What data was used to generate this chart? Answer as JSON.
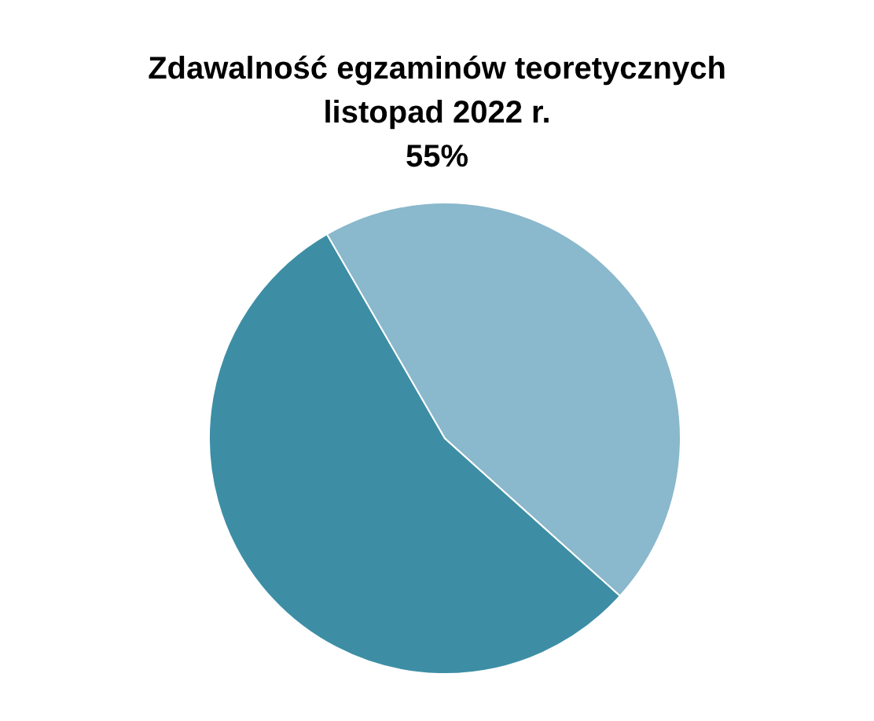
{
  "chart_data": {
    "type": "pie",
    "title": "Zdawalność egzaminów teoretycznych\nlistopad 2022 r.",
    "subtitle": "55%",
    "categories": [
      null,
      null
    ],
    "values": [
      55,
      45
    ],
    "colors": [
      "#3d8ea5",
      "#8ab8cc"
    ],
    "legend": false
  }
}
